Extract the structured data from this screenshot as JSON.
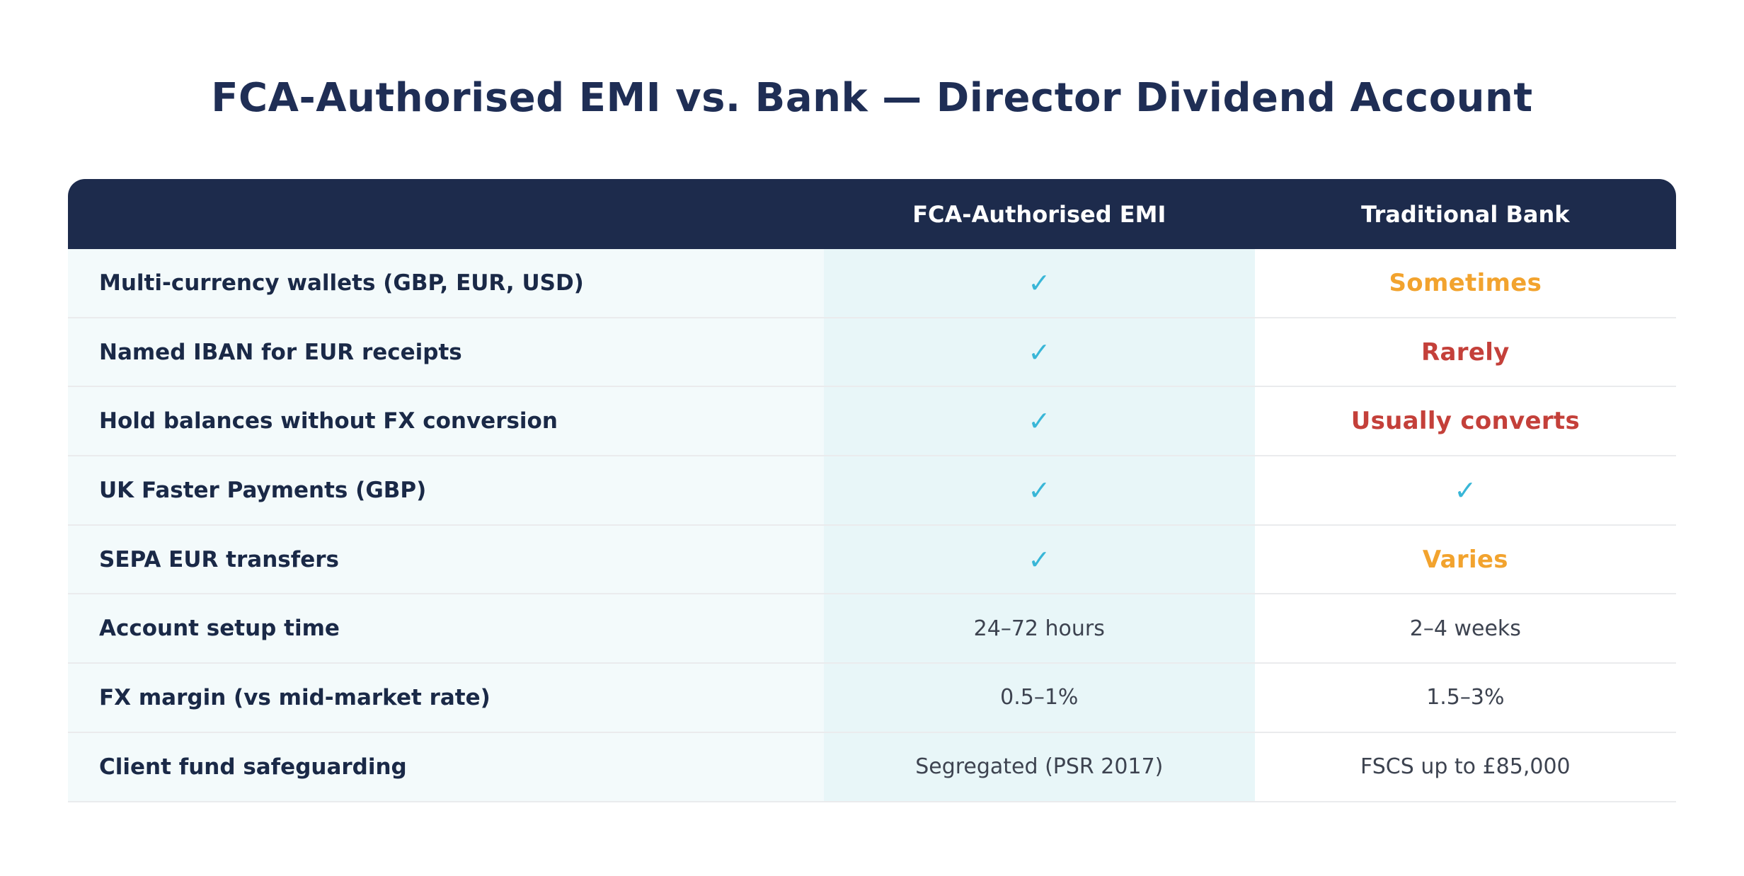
{
  "title": "FCA-Authorised EMI vs. Bank — Director Dividend Account",
  "table": {
    "header": {
      "feature": "",
      "emi": "FCA-Authorised EMI",
      "bank": "Traditional Bank"
    },
    "rows": [
      {
        "feature": "Multi-currency wallets (GBP, EUR, USD)",
        "emi": {
          "kind": "check"
        },
        "bank": {
          "kind": "status",
          "text": "Sometimes",
          "tone": "warn"
        }
      },
      {
        "feature": "Named IBAN for EUR receipts",
        "emi": {
          "kind": "check"
        },
        "bank": {
          "kind": "status",
          "text": "Rarely",
          "tone": "bad"
        }
      },
      {
        "feature": "Hold balances without FX conversion",
        "emi": {
          "kind": "check"
        },
        "bank": {
          "kind": "status",
          "text": "Usually converts",
          "tone": "bad"
        }
      },
      {
        "feature": "UK Faster Payments (GBP)",
        "emi": {
          "kind": "check"
        },
        "bank": {
          "kind": "check"
        }
      },
      {
        "feature": "SEPA EUR transfers",
        "emi": {
          "kind": "check"
        },
        "bank": {
          "kind": "status",
          "text": "Varies",
          "tone": "warn"
        }
      },
      {
        "feature": "Account setup time",
        "emi": {
          "kind": "text",
          "text": "24–72 hours"
        },
        "bank": {
          "kind": "text",
          "text": "2–4 weeks"
        }
      },
      {
        "feature": "FX margin (vs mid-market rate)",
        "emi": {
          "kind": "text",
          "text": "0.5–1%"
        },
        "bank": {
          "kind": "text",
          "text": "1.5–3%"
        }
      },
      {
        "feature": "Client fund safeguarding",
        "emi": {
          "kind": "text",
          "text": "Segregated (PSR 2017)"
        },
        "bank": {
          "kind": "text",
          "text": "FSCS up to £85,000"
        }
      }
    ]
  },
  "icons": {
    "check": "✓"
  },
  "colors": {
    "title_color": "#1f2e55",
    "header_bg": "#1d2b4c",
    "header_text": "#ffffff",
    "label_color": "#1a2947",
    "value_color": "#3d4350",
    "check_color": "#38b6d7",
    "warn_color": "#f2a32e",
    "bad_color": "#c4403a",
    "feature_bg": "#f3fafb",
    "emi_bg": "#e8f6f8",
    "bank_bg": "#ffffff",
    "border_color": "#eaebed",
    "page_bg": "#ffffff"
  }
}
